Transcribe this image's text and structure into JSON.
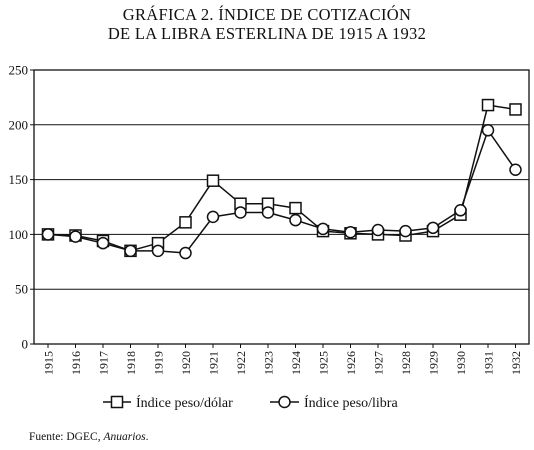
{
  "title_line1": "GRÁFICA 2. ÍNDICE DE COTIZACIÓN",
  "title_line2": "DE LA LIBRA ESTERLINA DE 1915 A 1932",
  "source": {
    "prefix": "Fuente: ",
    "org": "DGEC",
    "sep": ", ",
    "publication": "Anuarios",
    "end": "."
  },
  "chart_data": {
    "type": "line",
    "title": "GRÁFICA 2. ÍNDICE DE COTIZACIÓN DE LA LIBRA ESTERLINA DE 1915 A 1932",
    "xlabel": "",
    "ylabel": "",
    "categories": [
      "1915",
      "1916",
      "1917",
      "1918",
      "1919",
      "1920",
      "1921",
      "1922",
      "1923",
      "1924",
      "1925",
      "1926",
      "1927",
      "1928",
      "1929",
      "1930",
      "1931",
      "1932"
    ],
    "ylim": [
      0,
      250
    ],
    "yticks": [
      0,
      50,
      100,
      150,
      200,
      250
    ],
    "grid": "horizontal",
    "legend_position": "bottom",
    "series": [
      {
        "name": "Índice peso/dólar",
        "marker": "square",
        "values": [
          100,
          99,
          94,
          85,
          92,
          111,
          149,
          128,
          128,
          124,
          103,
          101,
          100,
          99,
          103,
          118,
          218,
          214
        ]
      },
      {
        "name": "Índice peso/libra",
        "marker": "circle",
        "values": [
          100,
          98,
          92,
          85,
          85,
          83,
          116,
          120,
          120,
          113,
          105,
          102,
          104,
          103,
          106,
          122,
          195,
          159
        ]
      }
    ]
  }
}
